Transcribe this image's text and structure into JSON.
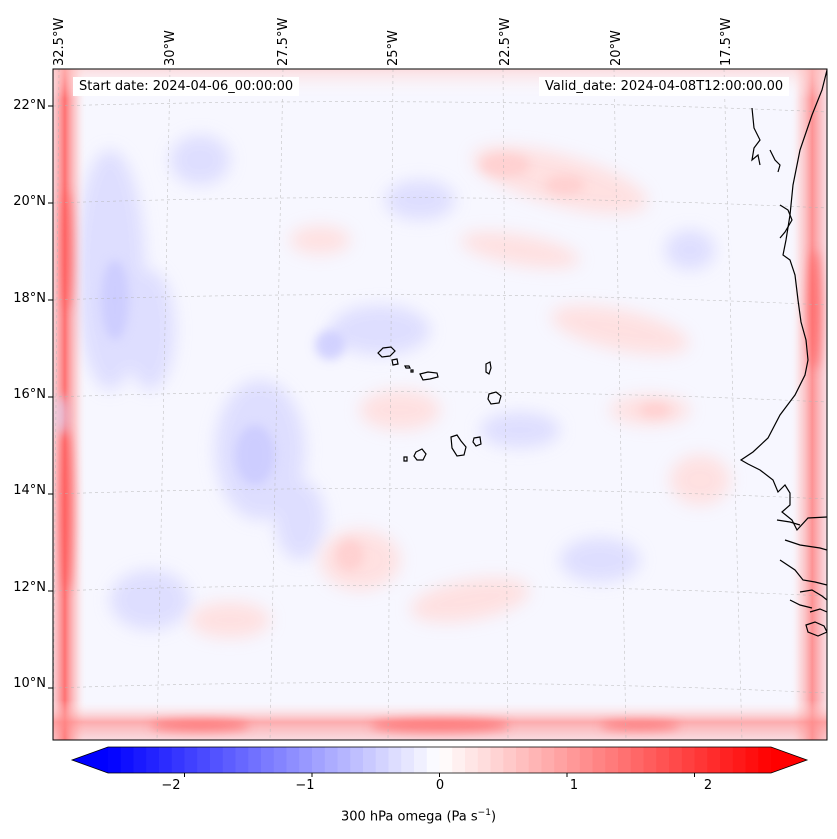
{
  "map": {
    "projection": "lambert-conformal",
    "field": "300 hPa omega",
    "start_date_text": "Start date: 2024-04-06_00:00:00",
    "valid_date_text": "Valid_date: 2024-04-08T12:00:00.00",
    "lon_labels": [
      "32.5°W",
      "30°W",
      "27.5°W",
      "25°W",
      "22.5°W",
      "20°W",
      "17.5°W"
    ],
    "lat_labels": [
      "22°N",
      "20°N",
      "18°N",
      "16°N",
      "14°N",
      "12°N",
      "10°N"
    ],
    "islands": "Cape Verde",
    "coastline": "West Africa (Mauritania, Senegal, Gambia, Guinea-Bissau)"
  },
  "colorbar": {
    "label_main": "300 hPa omega (Pa s",
    "label_exp": "−1",
    "label_end": ")",
    "ticks": [
      "−2",
      "−1",
      "0",
      "1",
      "2"
    ],
    "tick_values": [
      -2,
      -1,
      0,
      1,
      2
    ],
    "range": [
      -2.6,
      2.6
    ],
    "cmap": "bwr",
    "color_min": "#0000ff",
    "color_mid": "#ffffff",
    "color_max": "#ff0000"
  }
}
